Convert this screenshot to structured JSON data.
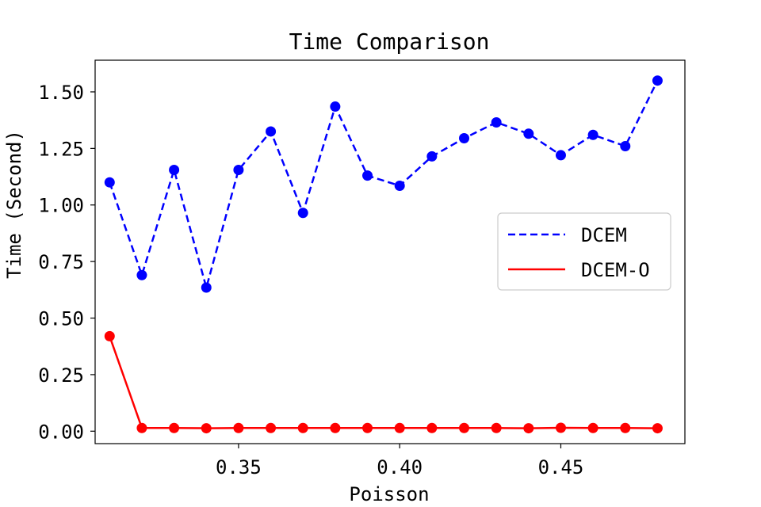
{
  "chart_data": {
    "type": "line",
    "title": "Time Comparison",
    "xlabel": "Poisson",
    "ylabel": "Time (Second)",
    "xlim": [
      0.3055,
      0.4885
    ],
    "ylim": [
      -0.055,
      1.64
    ],
    "xticks": [
      0.35,
      0.4,
      0.45
    ],
    "xtick_labels": [
      "0.35",
      "0.40",
      "0.45"
    ],
    "yticks": [
      0.0,
      0.25,
      0.5,
      0.75,
      1.0,
      1.25,
      1.5
    ],
    "ytick_labels": [
      "0.00",
      "0.25",
      "0.50",
      "0.75",
      "1.00",
      "1.25",
      "1.50"
    ],
    "grid": false,
    "legend_position": "center-right",
    "x": [
      0.31,
      0.32,
      0.33,
      0.34,
      0.35,
      0.36,
      0.37,
      0.38,
      0.39,
      0.4,
      0.41,
      0.42,
      0.43,
      0.44,
      0.45,
      0.46,
      0.47,
      0.48
    ],
    "series": [
      {
        "name": "DCEM",
        "color": "#0000ff",
        "style": "dashed",
        "values": [
          1.1,
          0.69,
          1.155,
          0.635,
          1.155,
          1.325,
          0.965,
          1.435,
          1.13,
          1.085,
          1.215,
          1.295,
          1.365,
          1.315,
          1.22,
          1.31,
          1.26,
          1.55
        ]
      },
      {
        "name": "DCEM-O",
        "color": "#ff0000",
        "style": "solid",
        "values": [
          0.42,
          0.014,
          0.014,
          0.013,
          0.014,
          0.014,
          0.014,
          0.014,
          0.014,
          0.014,
          0.014,
          0.014,
          0.014,
          0.013,
          0.015,
          0.014,
          0.014,
          0.013
        ]
      }
    ]
  }
}
